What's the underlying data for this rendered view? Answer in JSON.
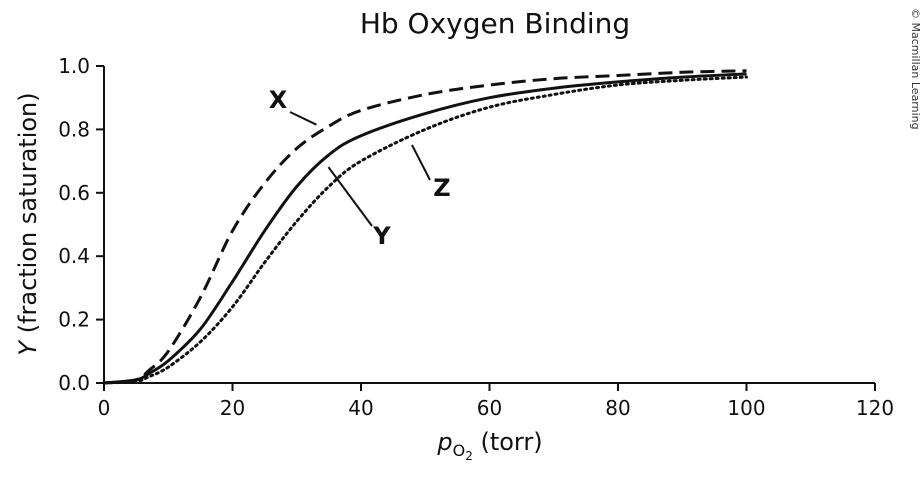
{
  "credit": "© Macmillan Learning",
  "chart_data": {
    "type": "line",
    "title": "Hb Oxygen Binding",
    "xlabel": {
      "italic": "p",
      "subscript": "O",
      "subsub": "2",
      "rest": " (torr)"
    },
    "ylabel": {
      "italic": "Y",
      "rest": " (fraction saturation)"
    },
    "xlim": [
      0,
      120
    ],
    "ylim": [
      0,
      1.0
    ],
    "xticks": [
      0,
      20,
      40,
      60,
      80,
      100,
      120
    ],
    "yticks": [
      "0.0",
      "0.2",
      "0.4",
      "0.6",
      "0.8",
      "1.0"
    ],
    "grid": false,
    "legend": "none",
    "series": [
      {
        "name": "X",
        "style": "dashed",
        "x": [
          0,
          5,
          7,
          10,
          15,
          20,
          25,
          30,
          35,
          40,
          50,
          60,
          70,
          80,
          90,
          100
        ],
        "y": [
          0,
          0.01,
          0.04,
          0.1,
          0.27,
          0.48,
          0.63,
          0.74,
          0.81,
          0.86,
          0.91,
          0.94,
          0.96,
          0.97,
          0.98,
          0.985
        ]
      },
      {
        "name": "Y",
        "style": "solid",
        "x": [
          0,
          5,
          7,
          10,
          15,
          20,
          25,
          30,
          35,
          40,
          50,
          60,
          70,
          80,
          90,
          100
        ],
        "y": [
          0,
          0.01,
          0.03,
          0.07,
          0.17,
          0.32,
          0.48,
          0.62,
          0.72,
          0.78,
          0.85,
          0.9,
          0.93,
          0.95,
          0.965,
          0.975
        ]
      },
      {
        "name": "Z",
        "style": "dotted",
        "x": [
          0,
          5,
          7,
          10,
          15,
          20,
          25,
          30,
          35,
          40,
          50,
          60,
          70,
          80,
          90,
          100
        ],
        "y": [
          0,
          0.005,
          0.02,
          0.05,
          0.13,
          0.24,
          0.38,
          0.51,
          0.62,
          0.7,
          0.8,
          0.87,
          0.91,
          0.94,
          0.955,
          0.965
        ]
      }
    ],
    "annotations": [
      {
        "text": "X",
        "series": "X",
        "at_x": 34
      },
      {
        "text": "Y",
        "series": "Y",
        "at_x": 34
      },
      {
        "text": "Z",
        "series": "Z",
        "at_x": 47
      }
    ]
  }
}
